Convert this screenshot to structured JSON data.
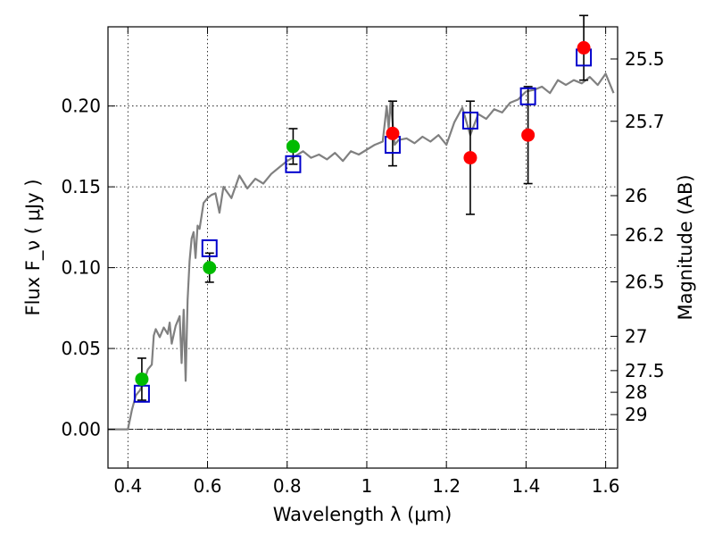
{
  "chart_data": {
    "type": "scatter",
    "xlabel": "Wavelength  λ (μm)",
    "ylabel": "Flux  F_ν  ( μJy )",
    "ylabel_right": "Magnitude (AB)",
    "xlim": [
      0.35,
      1.63
    ],
    "ylim": [
      -0.024,
      0.249
    ],
    "x_ticks": [
      0.4,
      0.6,
      0.8,
      1.0,
      1.2,
      1.4,
      1.6
    ],
    "x_tick_labels": [
      "0.4",
      "0.6",
      "0.8",
      "1",
      "1.2",
      "1.4",
      "1.6"
    ],
    "y_ticks": [
      0.0,
      0.05,
      0.1,
      0.15,
      0.2
    ],
    "y_tick_labels": [
      "0.00",
      "0.05",
      "0.10",
      "0.15",
      "0.20"
    ],
    "mag_ticks": [
      25.5,
      25.7,
      26,
      26.2,
      26.5,
      27,
      27.5,
      28,
      29
    ],
    "mag_tick_labels": [
      "25.5",
      "25.7",
      "26",
      "26.2",
      "26.5",
      "27",
      "27.5",
      "28",
      "29"
    ],
    "grid": true,
    "colors": {
      "model": "#808080",
      "green_points": "#00bb00",
      "red_points": "#ff0000",
      "model_boxes": "#0000cc",
      "errorbars": "#000000"
    },
    "series": [
      {
        "kind": "line",
        "x": [
          0.35,
          0.4,
          0.41,
          0.42,
          0.43,
          0.44,
          0.45,
          0.46,
          0.465,
          0.47,
          0.48,
          0.49,
          0.5,
          0.505,
          0.51,
          0.52,
          0.53,
          0.535,
          0.54,
          0.545,
          0.55,
          0.555,
          0.56,
          0.565,
          0.57,
          0.575,
          0.58,
          0.59,
          0.6,
          0.61,
          0.62,
          0.63,
          0.64,
          0.66,
          0.68,
          0.7,
          0.72,
          0.74,
          0.76,
          0.78,
          0.8,
          0.82,
          0.84,
          0.86,
          0.88,
          0.9,
          0.92,
          0.94,
          0.96,
          0.98,
          1.0,
          1.02,
          1.04,
          1.05,
          1.055,
          1.06,
          1.07,
          1.08,
          1.1,
          1.12,
          1.14,
          1.16,
          1.18,
          1.2,
          1.22,
          1.24,
          1.26,
          1.28,
          1.3,
          1.32,
          1.34,
          1.36,
          1.38,
          1.4,
          1.42,
          1.44,
          1.46,
          1.48,
          1.5,
          1.52,
          1.54,
          1.56,
          1.58,
          1.6,
          1.62
        ],
        "y": [
          0.0,
          0.0,
          0.012,
          0.021,
          0.024,
          0.029,
          0.037,
          0.04,
          0.058,
          0.062,
          0.057,
          0.063,
          0.059,
          0.066,
          0.053,
          0.064,
          0.07,
          0.041,
          0.074,
          0.03,
          0.08,
          0.104,
          0.118,
          0.122,
          0.106,
          0.126,
          0.124,
          0.14,
          0.143,
          0.145,
          0.146,
          0.134,
          0.15,
          0.143,
          0.157,
          0.149,
          0.155,
          0.152,
          0.158,
          0.162,
          0.166,
          0.169,
          0.172,
          0.168,
          0.17,
          0.167,
          0.171,
          0.166,
          0.172,
          0.17,
          0.173,
          0.176,
          0.178,
          0.2,
          0.186,
          0.203,
          0.176,
          0.179,
          0.18,
          0.177,
          0.181,
          0.178,
          0.182,
          0.176,
          0.19,
          0.199,
          0.182,
          0.195,
          0.192,
          0.198,
          0.196,
          0.202,
          0.204,
          0.209,
          0.21,
          0.212,
          0.208,
          0.216,
          0.213,
          0.216,
          0.214,
          0.218,
          0.213,
          0.22,
          0.208
        ]
      },
      {
        "kind": "points",
        "marker": "circle",
        "color_key": "green_points",
        "x": [
          0.435,
          0.605,
          0.815
        ],
        "y": [
          0.031,
          0.1,
          0.175
        ],
        "yerr": [
          0.013,
          0.009,
          0.011
        ]
      },
      {
        "kind": "points",
        "marker": "circle",
        "color_key": "red_points",
        "x": [
          1.065,
          1.26,
          1.405,
          1.545
        ],
        "y": [
          0.183,
          0.168,
          0.182,
          0.236
        ],
        "yerr": [
          0.02,
          0.035,
          0.03,
          0.02
        ]
      },
      {
        "kind": "points",
        "marker": "open-square",
        "color_key": "model_boxes",
        "x": [
          0.435,
          0.605,
          0.815,
          1.065,
          1.26,
          1.405,
          1.545
        ],
        "y": [
          0.022,
          0.112,
          0.164,
          0.176,
          0.191,
          0.206,
          0.23
        ]
      }
    ]
  }
}
